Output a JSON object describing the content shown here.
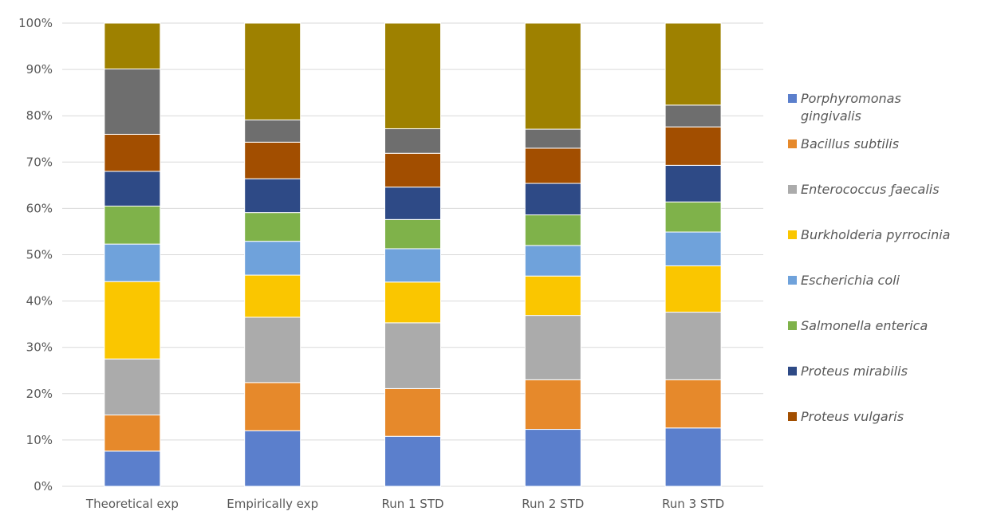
{
  "chart_data": {
    "type": "bar",
    "stacked": true,
    "percent_stacked": true,
    "categories": [
      "Theoretical exp",
      "Empirically exp",
      "Run 1 STD",
      "Run 2 STD",
      "Run 3 STD"
    ],
    "y_ticks": [
      "0%",
      "10%",
      "20%",
      "30%",
      "40%",
      "50%",
      "60%",
      "70%",
      "80%",
      "90%",
      "100%"
    ],
    "ylim": [
      0,
      100
    ],
    "grid": true,
    "legend_position": "right",
    "series": [
      {
        "name": "Porphyromonas gingivalis",
        "legend_lines": [
          "Porphyromonas",
          "gingivalis"
        ],
        "color": "#5B7FCC",
        "values": [
          7.6,
          12.0,
          10.8,
          12.3,
          12.6
        ]
      },
      {
        "name": "Bacillus subtilis",
        "legend_lines": [
          "Bacillus subtilis"
        ],
        "color": "#E6892B",
        "values": [
          7.8,
          10.4,
          10.3,
          10.7,
          10.4
        ]
      },
      {
        "name": "Enterococcus faecalis",
        "legend_lines": [
          "Enterococcus ƒaecalis"
        ],
        "color": "#ABABAB",
        "values": [
          12.1,
          14.1,
          14.2,
          13.9,
          14.6
        ]
      },
      {
        "name": "Burkholderia pyrrocinia",
        "legend_lines": [
          "Burkholderia pyrrocinia"
        ],
        "color": "#FAC600",
        "values": [
          16.7,
          9.1,
          8.8,
          8.5,
          10.0
        ]
      },
      {
        "name": "Escherichia coli",
        "legend_lines": [
          "Escherichia coli"
        ],
        "color": "#6FA2DB",
        "values": [
          8.1,
          7.3,
          7.2,
          6.6,
          7.3
        ]
      },
      {
        "name": "Salmonella enterica",
        "legend_lines": [
          "Salmonella enterica"
        ],
        "color": "#7FB24A",
        "values": [
          8.2,
          6.2,
          6.3,
          6.6,
          6.5
        ]
      },
      {
        "name": "Proteus mirabilis",
        "legend_lines": [
          "Proteus mirabilis"
        ],
        "color": "#2E4A86",
        "values": [
          7.5,
          7.3,
          7.0,
          6.8,
          7.9
        ]
      },
      {
        "name": "Proteus vulgaris",
        "legend_lines": [
          "Proteus vulgaris"
        ],
        "color": "#A24E00",
        "values": [
          8.0,
          7.9,
          7.3,
          7.6,
          8.3
        ]
      },
      {
        "name": "",
        "legend_lines": [],
        "color": "#6E6E6E",
        "values": [
          14.1,
          4.8,
          5.3,
          4.1,
          4.7
        ]
      },
      {
        "name": "",
        "legend_lines": [],
        "color": "#9E8100",
        "values": [
          9.9,
          20.9,
          22.8,
          22.9,
          17.7
        ]
      }
    ]
  }
}
